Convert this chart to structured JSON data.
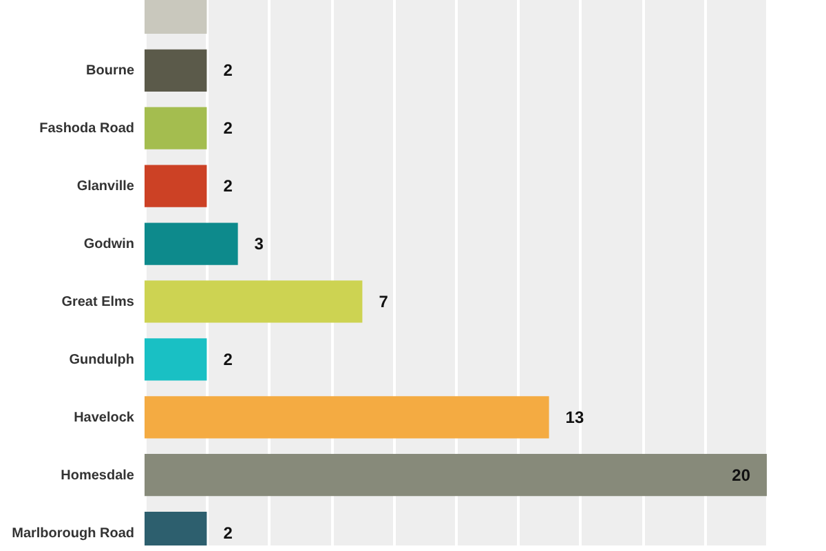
{
  "chart_data": {
    "type": "bar",
    "orientation": "horizontal",
    "categories": [
      null,
      "Bourne",
      "Fashoda Road",
      "Glanville",
      "Godwin",
      "Great Elms",
      "Gundulph",
      "Havelock",
      "Homesdale",
      "Marlborough Road"
    ],
    "values": [
      2,
      2,
      2,
      2,
      3,
      7,
      2,
      13,
      20,
      2
    ],
    "colors": [
      "#c9c8bd",
      "#5b5a4a",
      "#a4bd4f",
      "#cc4125",
      "#0d8a8c",
      "#cdd352",
      "#19c0c4",
      "#f4ab42",
      "#878a7a",
      "#2d5f6e"
    ],
    "value_labels": [
      null,
      "2",
      "2",
      "2",
      "3",
      "7",
      "2",
      "13",
      "20",
      "2"
    ],
    "xlim": [
      0,
      20
    ],
    "xticks": [
      {
        "value": 0,
        "label": null
      },
      {
        "value": 2,
        "label": null
      },
      {
        "value": 4,
        "label": null
      },
      {
        "value": 6,
        "label": null
      },
      {
        "value": 8,
        "label": null
      },
      {
        "value": 10,
        "label": null
      },
      {
        "value": 12,
        "label": null
      },
      {
        "value": 14,
        "label": null
      },
      {
        "value": 16,
        "label": null
      },
      {
        "value": 18,
        "label": null
      },
      {
        "value": 20,
        "label": null
      }
    ],
    "grid": true,
    "tick_labels": "y"
  }
}
